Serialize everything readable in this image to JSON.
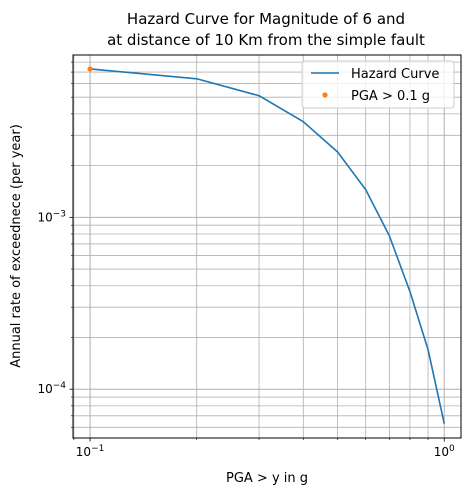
{
  "chart_data": {
    "type": "line",
    "title_lines": [
      "Hazard Curve for Magnitude of 6 and",
      "at distance of 10 Km from the simple fault"
    ],
    "xlabel": "PGA > y in g",
    "ylabel": "Annual rate of exceednece (per year)",
    "xscale": "log",
    "yscale": "log",
    "xlim": [
      0.0895,
      1.115
    ],
    "ylim": [
      5.2e-05,
      0.0088
    ],
    "grid": "both major and minor",
    "x_ticks": [
      {
        "value": 0.1,
        "label_base": "10",
        "label_exp": "−1"
      },
      {
        "value": 1,
        "label_base": "10",
        "label_exp": "0"
      }
    ],
    "y_ticks": [
      {
        "value": 0.0001,
        "label_base": "10",
        "label_exp": "−4"
      },
      {
        "value": 0.001,
        "label_base": "10",
        "label_exp": "−3"
      }
    ],
    "series": [
      {
        "name": "Hazard Curve",
        "kind": "line",
        "color": "#1f77b4",
        "x": [
          0.1,
          0.2,
          0.3,
          0.4,
          0.5,
          0.6,
          0.7,
          0.8,
          0.9,
          1.0
        ],
        "y": [
          0.0073,
          0.0064,
          0.0051,
          0.0036,
          0.0024,
          0.00145,
          0.00078,
          0.00037,
          0.00017,
          6.3e-05
        ]
      },
      {
        "name": "PGA > 0.1 g",
        "kind": "marker",
        "color": "#ff7f0e",
        "x": [
          0.1
        ],
        "y": [
          0.0073
        ]
      }
    ],
    "legend": {
      "location": "upper right",
      "entries": [
        "Hazard Curve",
        "PGA > 0.1 g"
      ]
    }
  }
}
